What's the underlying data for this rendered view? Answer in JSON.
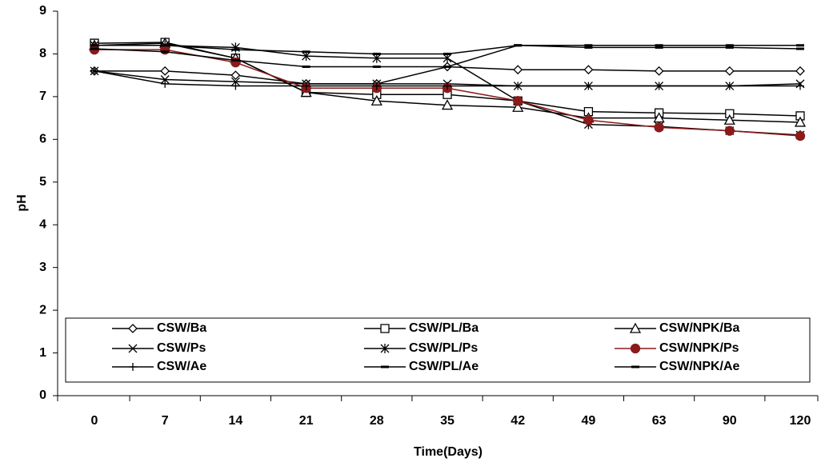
{
  "chart_data": {
    "type": "line",
    "x_label": "Time(Days)",
    "y_label": "pH",
    "categories": [
      "0",
      "7",
      "14",
      "21",
      "28",
      "35",
      "42",
      "49",
      "63",
      "90",
      "120"
    ],
    "ylim": [
      0,
      9
    ],
    "yticks": [
      0,
      1,
      2,
      3,
      4,
      5,
      6,
      7,
      8,
      9
    ],
    "series": [
      {
        "name": "CSW/Ba",
        "color": "#000000",
        "marker": "diamond",
        "values": [
          7.6,
          7.6,
          7.5,
          7.3,
          7.3,
          7.7,
          7.63,
          7.63,
          7.6,
          7.6,
          7.6
        ]
      },
      {
        "name": "CSW/PL/Ba",
        "color": "#000000",
        "marker": "square",
        "values": [
          8.25,
          8.27,
          7.9,
          7.1,
          7.05,
          7.05,
          6.9,
          6.65,
          6.62,
          6.6,
          6.55
        ]
      },
      {
        "name": "CSW/NPK/Ba",
        "color": "#000000",
        "marker": "triangle",
        "values": [
          8.2,
          8.25,
          7.9,
          7.1,
          6.9,
          6.8,
          6.75,
          6.5,
          6.5,
          6.45,
          6.4
        ]
      },
      {
        "name": "CSW/Ps",
        "color": "#000000",
        "marker": "x",
        "values": [
          7.6,
          7.4,
          7.35,
          7.3,
          7.3,
          7.3,
          7.25,
          7.25,
          7.25,
          7.25,
          7.3
        ]
      },
      {
        "name": "CSW/PL/Ps",
        "color": "#000000",
        "marker": "asterisk",
        "values": [
          8.2,
          8.2,
          8.15,
          7.95,
          7.9,
          7.9,
          6.9,
          6.35,
          6.3,
          6.2,
          6.1
        ]
      },
      {
        "name": "CSW/NPK/Ps",
        "color": "#8b1a1a",
        "marker": "circle",
        "values": [
          8.1,
          8.1,
          7.8,
          7.2,
          7.2,
          7.2,
          6.9,
          6.45,
          6.28,
          6.2,
          6.08
        ]
      },
      {
        "name": "CSW/Ae",
        "color": "#000000",
        "marker": "plus",
        "values": [
          7.6,
          7.3,
          7.25,
          7.25,
          7.25,
          7.25,
          7.25,
          7.25,
          7.25,
          7.25,
          7.25
        ]
      },
      {
        "name": "CSW/PL/Ae",
        "color": "#000000",
        "marker": "dash",
        "values": [
          8.2,
          8.2,
          8.1,
          8.05,
          8.0,
          8.0,
          8.2,
          8.2,
          8.2,
          8.2,
          8.2
        ]
      },
      {
        "name": "CSW/NPK/Ae",
        "color": "#000000",
        "marker": "dash",
        "values": [
          8.12,
          8.05,
          7.85,
          7.7,
          7.7,
          7.7,
          8.2,
          8.15,
          8.15,
          8.15,
          8.12
        ]
      }
    ]
  }
}
